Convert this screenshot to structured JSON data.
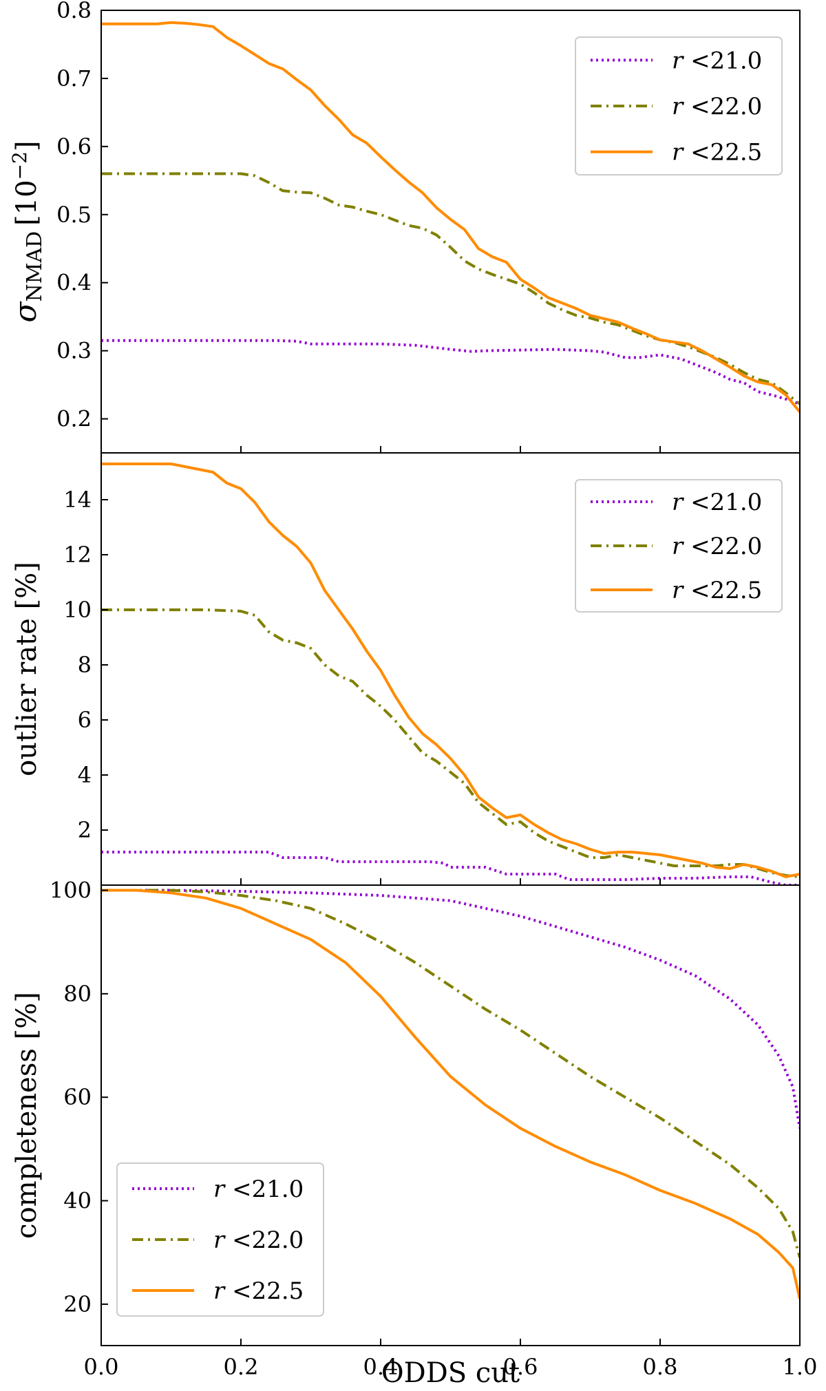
{
  "chart_data": [
    {
      "type": "line",
      "panel": "top",
      "ylabel": "σNMAD [10−2]",
      "ylabel_parts": {
        "symbol": "σ",
        "subscript": "NMAD",
        "unit": "[10",
        "exponent": "−2",
        "close": "]"
      },
      "xlim": [
        0.0,
        1.0
      ],
      "ylim": [
        0.15,
        0.8
      ],
      "yticks": [
        0.2,
        0.3,
        0.4,
        0.5,
        0.6,
        0.7,
        0.8
      ],
      "ytick_labels": [
        "0.2",
        "0.3",
        "0.4",
        "0.5",
        "0.6",
        "0.7",
        "0.8"
      ],
      "legend_position": "top-right",
      "series": [
        {
          "name": "r <21.0",
          "name_var": "r",
          "name_rest": " <21.0",
          "color": "#9400d3",
          "dash": "dotted",
          "x": [
            0.0,
            0.05,
            0.1,
            0.15,
            0.2,
            0.25,
            0.28,
            0.3,
            0.35,
            0.4,
            0.45,
            0.5,
            0.53,
            0.55,
            0.6,
            0.65,
            0.7,
            0.72,
            0.75,
            0.77,
            0.8,
            0.83,
            0.85,
            0.88,
            0.9,
            0.92,
            0.94,
            0.96,
            0.98,
            1.0
          ],
          "y": [
            0.315,
            0.315,
            0.315,
            0.315,
            0.315,
            0.315,
            0.314,
            0.31,
            0.31,
            0.31,
            0.308,
            0.302,
            0.299,
            0.3,
            0.301,
            0.302,
            0.3,
            0.298,
            0.29,
            0.29,
            0.294,
            0.288,
            0.28,
            0.268,
            0.258,
            0.253,
            0.24,
            0.235,
            0.229,
            0.222
          ]
        },
        {
          "name": "r <22.0",
          "name_var": "r",
          "name_rest": " <22.0",
          "color": "#808000",
          "dash": "dashdot",
          "x": [
            0.0,
            0.05,
            0.1,
            0.15,
            0.2,
            0.22,
            0.24,
            0.26,
            0.28,
            0.3,
            0.32,
            0.34,
            0.36,
            0.38,
            0.4,
            0.42,
            0.44,
            0.46,
            0.48,
            0.5,
            0.52,
            0.54,
            0.56,
            0.58,
            0.6,
            0.62,
            0.64,
            0.66,
            0.68,
            0.7,
            0.72,
            0.74,
            0.76,
            0.78,
            0.8,
            0.82,
            0.84,
            0.86,
            0.88,
            0.9,
            0.92,
            0.94,
            0.96,
            0.98,
            1.0
          ],
          "y": [
            0.56,
            0.56,
            0.56,
            0.56,
            0.56,
            0.557,
            0.547,
            0.535,
            0.533,
            0.532,
            0.524,
            0.514,
            0.511,
            0.505,
            0.5,
            0.492,
            0.484,
            0.48,
            0.47,
            0.452,
            0.432,
            0.42,
            0.412,
            0.405,
            0.398,
            0.385,
            0.37,
            0.36,
            0.352,
            0.348,
            0.342,
            0.338,
            0.33,
            0.322,
            0.316,
            0.312,
            0.306,
            0.298,
            0.29,
            0.28,
            0.268,
            0.258,
            0.253,
            0.238,
            0.222
          ]
        },
        {
          "name": "r <22.5",
          "name_var": "r",
          "name_rest": " <22.5",
          "color": "#ff8c00",
          "dash": "solid",
          "x": [
            0.0,
            0.05,
            0.08,
            0.1,
            0.12,
            0.14,
            0.16,
            0.18,
            0.2,
            0.22,
            0.24,
            0.26,
            0.28,
            0.3,
            0.32,
            0.34,
            0.36,
            0.38,
            0.4,
            0.42,
            0.44,
            0.46,
            0.48,
            0.5,
            0.52,
            0.54,
            0.56,
            0.58,
            0.6,
            0.62,
            0.64,
            0.66,
            0.68,
            0.7,
            0.72,
            0.74,
            0.76,
            0.78,
            0.8,
            0.82,
            0.84,
            0.86,
            0.88,
            0.9,
            0.92,
            0.94,
            0.96,
            0.98,
            1.0
          ],
          "y": [
            0.78,
            0.78,
            0.78,
            0.782,
            0.781,
            0.779,
            0.776,
            0.76,
            0.748,
            0.735,
            0.722,
            0.714,
            0.698,
            0.683,
            0.66,
            0.64,
            0.617,
            0.605,
            0.585,
            0.566,
            0.548,
            0.532,
            0.51,
            0.493,
            0.478,
            0.45,
            0.438,
            0.43,
            0.405,
            0.392,
            0.378,
            0.37,
            0.362,
            0.352,
            0.347,
            0.342,
            0.333,
            0.325,
            0.316,
            0.313,
            0.31,
            0.3,
            0.288,
            0.276,
            0.263,
            0.254,
            0.25,
            0.235,
            0.21
          ]
        }
      ]
    },
    {
      "type": "line",
      "panel": "middle",
      "ylabel": "outlier rate [%]",
      "xlim": [
        0.0,
        1.0
      ],
      "ylim": [
        0.0,
        15.7
      ],
      "yticks": [
        2,
        4,
        6,
        8,
        10,
        12,
        14
      ],
      "ytick_labels": [
        "2",
        "4",
        "6",
        "8",
        "10",
        "12",
        "14"
      ],
      "legend_position": "top-right",
      "series": [
        {
          "name": "r <21.0",
          "name_var": "r",
          "name_rest": " <21.0",
          "color": "#9400d3",
          "dash": "dotted",
          "x": [
            0.0,
            0.05,
            0.1,
            0.15,
            0.2,
            0.24,
            0.26,
            0.3,
            0.32,
            0.34,
            0.4,
            0.45,
            0.47,
            0.49,
            0.5,
            0.53,
            0.55,
            0.58,
            0.62,
            0.65,
            0.67,
            0.7,
            0.75,
            0.8,
            0.85,
            0.9,
            0.93,
            0.96,
            0.98,
            1.0
          ],
          "y": [
            1.2,
            1.2,
            1.2,
            1.2,
            1.2,
            1.2,
            1.0,
            1.0,
            1.0,
            0.85,
            0.85,
            0.85,
            0.85,
            0.8,
            0.65,
            0.65,
            0.65,
            0.4,
            0.4,
            0.4,
            0.2,
            0.2,
            0.2,
            0.25,
            0.25,
            0.3,
            0.3,
            0.1,
            0.0,
            0.0
          ]
        },
        {
          "name": "r <22.0",
          "name_var": "r",
          "name_rest": " <22.0",
          "color": "#808000",
          "dash": "dashdot",
          "x": [
            0.0,
            0.05,
            0.1,
            0.15,
            0.2,
            0.22,
            0.24,
            0.26,
            0.28,
            0.3,
            0.32,
            0.34,
            0.36,
            0.38,
            0.4,
            0.42,
            0.44,
            0.46,
            0.48,
            0.5,
            0.52,
            0.54,
            0.56,
            0.58,
            0.6,
            0.62,
            0.64,
            0.66,
            0.68,
            0.7,
            0.72,
            0.74,
            0.76,
            0.78,
            0.8,
            0.82,
            0.84,
            0.86,
            0.88,
            0.9,
            0.92,
            0.94,
            0.96,
            0.98,
            1.0
          ],
          "y": [
            10.0,
            10.0,
            10.0,
            10.0,
            9.95,
            9.8,
            9.2,
            8.9,
            8.8,
            8.6,
            8.0,
            7.6,
            7.4,
            6.9,
            6.5,
            6.0,
            5.4,
            4.8,
            4.5,
            4.1,
            3.7,
            3.0,
            2.6,
            2.2,
            2.3,
            1.9,
            1.6,
            1.4,
            1.2,
            1.0,
            1.0,
            1.1,
            1.0,
            0.9,
            0.8,
            0.7,
            0.7,
            0.7,
            0.7,
            0.75,
            0.75,
            0.6,
            0.45,
            0.35,
            0.3
          ]
        },
        {
          "name": "r <22.5",
          "name_var": "r",
          "name_rest": " <22.5",
          "color": "#ff8c00",
          "dash": "solid",
          "x": [
            0.0,
            0.05,
            0.08,
            0.1,
            0.12,
            0.14,
            0.16,
            0.18,
            0.2,
            0.22,
            0.24,
            0.26,
            0.28,
            0.3,
            0.32,
            0.34,
            0.36,
            0.38,
            0.4,
            0.42,
            0.44,
            0.46,
            0.48,
            0.5,
            0.52,
            0.54,
            0.56,
            0.58,
            0.6,
            0.62,
            0.64,
            0.66,
            0.68,
            0.7,
            0.72,
            0.74,
            0.76,
            0.78,
            0.8,
            0.82,
            0.84,
            0.86,
            0.88,
            0.9,
            0.92,
            0.94,
            0.96,
            0.98,
            1.0
          ],
          "y": [
            15.3,
            15.3,
            15.3,
            15.3,
            15.2,
            15.1,
            15.0,
            14.6,
            14.4,
            13.9,
            13.2,
            12.7,
            12.3,
            11.7,
            10.7,
            10.0,
            9.3,
            8.5,
            7.8,
            6.9,
            6.1,
            5.5,
            5.1,
            4.6,
            4.0,
            3.2,
            2.8,
            2.45,
            2.55,
            2.2,
            1.9,
            1.65,
            1.5,
            1.3,
            1.15,
            1.2,
            1.2,
            1.15,
            1.1,
            1.0,
            0.9,
            0.8,
            0.65,
            0.6,
            0.75,
            0.65,
            0.5,
            0.3,
            0.4
          ]
        }
      ]
    },
    {
      "type": "line",
      "panel": "bottom",
      "ylabel": "completeness [%]",
      "xlabel": "ODDS cut",
      "xlim": [
        0.0,
        1.0
      ],
      "ylim": [
        12.0,
        101.0
      ],
      "xticks": [
        0.0,
        0.2,
        0.4,
        0.6,
        0.8,
        1.0
      ],
      "xtick_labels": [
        "0.0",
        "0.2",
        "0.4",
        "0.6",
        "0.8",
        "1.0"
      ],
      "yticks": [
        20,
        40,
        60,
        80,
        100
      ],
      "ytick_labels": [
        "20",
        "40",
        "60",
        "80",
        "100"
      ],
      "legend_position": "bottom-left",
      "series": [
        {
          "name": "r <21.0",
          "name_var": "r",
          "name_rest": " <21.0",
          "color": "#9400d3",
          "dash": "dotted",
          "x": [
            0.0,
            0.1,
            0.2,
            0.3,
            0.4,
            0.5,
            0.55,
            0.6,
            0.65,
            0.7,
            0.75,
            0.8,
            0.85,
            0.9,
            0.94,
            0.97,
            0.99,
            1.0
          ],
          "y": [
            100,
            100,
            99.8,
            99.5,
            99,
            98,
            96.5,
            95,
            93,
            91,
            89,
            86.5,
            83.5,
            79,
            74,
            68,
            62,
            54
          ]
        },
        {
          "name": "r <22.0",
          "name_var": "r",
          "name_rest": " <22.0",
          "color": "#808000",
          "dash": "dashdot",
          "x": [
            0.0,
            0.1,
            0.15,
            0.2,
            0.25,
            0.3,
            0.35,
            0.4,
            0.45,
            0.5,
            0.55,
            0.6,
            0.65,
            0.7,
            0.75,
            0.8,
            0.85,
            0.9,
            0.94,
            0.97,
            0.99,
            1.0
          ],
          "y": [
            100,
            100,
            99.7,
            99,
            98,
            96.5,
            93.5,
            90,
            86,
            81.5,
            77,
            73,
            68.5,
            64,
            60,
            56,
            51.5,
            47,
            42.5,
            38.5,
            34,
            29
          ]
        },
        {
          "name": "r <22.5",
          "name_var": "r",
          "name_rest": " <22.5",
          "color": "#ff8c00",
          "dash": "solid",
          "x": [
            0.0,
            0.05,
            0.1,
            0.15,
            0.2,
            0.25,
            0.3,
            0.35,
            0.4,
            0.45,
            0.5,
            0.55,
            0.6,
            0.65,
            0.7,
            0.75,
            0.8,
            0.85,
            0.9,
            0.94,
            0.97,
            0.99,
            1.0
          ],
          "y": [
            100,
            100,
            99.5,
            98.5,
            96.5,
            93.5,
            90.5,
            86,
            79.5,
            71.5,
            64,
            58.5,
            54,
            50.5,
            47.5,
            45,
            42,
            39.5,
            36.5,
            33.5,
            30,
            27,
            21
          ]
        }
      ]
    }
  ]
}
